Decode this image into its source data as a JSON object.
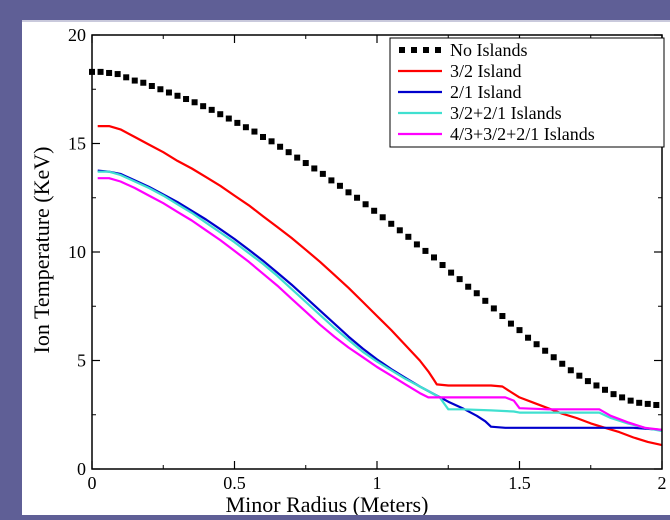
{
  "chart_data": {
    "type": "line",
    "xlabel": "Minor Radius (Meters)",
    "ylabel": "Ion Temperature (KeV)",
    "xlim": [
      0,
      2
    ],
    "ylim": [
      0,
      20
    ],
    "x_ticks": [
      {
        "value": 0,
        "label": "0"
      },
      {
        "value": 0.5,
        "label": "0.5"
      },
      {
        "value": 1,
        "label": "1"
      },
      {
        "value": 1.5,
        "label": "1.5"
      },
      {
        "value": 2,
        "label": "2"
      }
    ],
    "y_ticks": [
      {
        "value": 0,
        "label": "0"
      },
      {
        "value": 5,
        "label": "5"
      },
      {
        "value": 10,
        "label": "10"
      },
      {
        "value": 15,
        "label": "15"
      },
      {
        "value": 20,
        "label": "20"
      }
    ],
    "legend_position": "top-right",
    "series": [
      {
        "name": "No Islands",
        "style": "markers",
        "color": "#000000",
        "points": [
          [
            0.0,
            18.3
          ],
          [
            0.03,
            18.3
          ],
          [
            0.06,
            18.25
          ],
          [
            0.09,
            18.2
          ],
          [
            0.12,
            18.05
          ],
          [
            0.15,
            17.9
          ],
          [
            0.18,
            17.8
          ],
          [
            0.21,
            17.65
          ],
          [
            0.24,
            17.5
          ],
          [
            0.27,
            17.35
          ],
          [
            0.3,
            17.2
          ],
          [
            0.33,
            17.05
          ],
          [
            0.36,
            16.9
          ],
          [
            0.39,
            16.72
          ],
          [
            0.42,
            16.55
          ],
          [
            0.45,
            16.35
          ],
          [
            0.48,
            16.15
          ],
          [
            0.51,
            15.95
          ],
          [
            0.54,
            15.75
          ],
          [
            0.57,
            15.55
          ],
          [
            0.6,
            15.3
          ],
          [
            0.63,
            15.1
          ],
          [
            0.66,
            14.85
          ],
          [
            0.69,
            14.6
          ],
          [
            0.72,
            14.35
          ],
          [
            0.75,
            14.1
          ],
          [
            0.78,
            13.85
          ],
          [
            0.81,
            13.6
          ],
          [
            0.84,
            13.3
          ],
          [
            0.87,
            13.05
          ],
          [
            0.9,
            12.75
          ],
          [
            0.93,
            12.5
          ],
          [
            0.96,
            12.2
          ],
          [
            0.99,
            11.9
          ],
          [
            1.02,
            11.6
          ],
          [
            1.05,
            11.3
          ],
          [
            1.08,
            11.0
          ],
          [
            1.11,
            10.7
          ],
          [
            1.14,
            10.35
          ],
          [
            1.17,
            10.05
          ],
          [
            1.2,
            9.75
          ],
          [
            1.23,
            9.4
          ],
          [
            1.26,
            9.05
          ],
          [
            1.29,
            8.75
          ],
          [
            1.32,
            8.4
          ],
          [
            1.35,
            8.1
          ],
          [
            1.38,
            7.75
          ],
          [
            1.41,
            7.4
          ],
          [
            1.44,
            7.05
          ],
          [
            1.47,
            6.7
          ],
          [
            1.5,
            6.4
          ],
          [
            1.53,
            6.05
          ],
          [
            1.56,
            5.75
          ],
          [
            1.59,
            5.45
          ],
          [
            1.62,
            5.15
          ],
          [
            1.65,
            4.85
          ],
          [
            1.68,
            4.55
          ],
          [
            1.71,
            4.3
          ],
          [
            1.74,
            4.05
          ],
          [
            1.77,
            3.85
          ],
          [
            1.8,
            3.65
          ],
          [
            1.83,
            3.45
          ],
          [
            1.86,
            3.3
          ],
          [
            1.89,
            3.15
          ],
          [
            1.92,
            3.05
          ],
          [
            1.95,
            3.0
          ],
          [
            1.98,
            2.95
          ]
        ]
      },
      {
        "name": "3/2 Island",
        "style": "line",
        "color": "#ff0000",
        "points": [
          [
            0.02,
            15.8
          ],
          [
            0.06,
            15.8
          ],
          [
            0.1,
            15.65
          ],
          [
            0.15,
            15.3
          ],
          [
            0.2,
            14.95
          ],
          [
            0.25,
            14.6
          ],
          [
            0.3,
            14.2
          ],
          [
            0.35,
            13.85
          ],
          [
            0.4,
            13.45
          ],
          [
            0.45,
            13.05
          ],
          [
            0.5,
            12.6
          ],
          [
            0.55,
            12.15
          ],
          [
            0.6,
            11.65
          ],
          [
            0.65,
            11.15
          ],
          [
            0.7,
            10.65
          ],
          [
            0.75,
            10.1
          ],
          [
            0.8,
            9.55
          ],
          [
            0.85,
            8.95
          ],
          [
            0.9,
            8.35
          ],
          [
            0.95,
            7.7
          ],
          [
            1.0,
            7.05
          ],
          [
            1.05,
            6.4
          ],
          [
            1.1,
            5.7
          ],
          [
            1.15,
            5.0
          ],
          [
            1.18,
            4.5
          ],
          [
            1.2,
            4.1
          ],
          [
            1.21,
            3.9
          ],
          [
            1.25,
            3.85
          ],
          [
            1.3,
            3.85
          ],
          [
            1.35,
            3.85
          ],
          [
            1.4,
            3.85
          ],
          [
            1.44,
            3.8
          ],
          [
            1.47,
            3.55
          ],
          [
            1.5,
            3.3
          ],
          [
            1.55,
            3.05
          ],
          [
            1.6,
            2.8
          ],
          [
            1.65,
            2.55
          ],
          [
            1.7,
            2.35
          ],
          [
            1.75,
            2.1
          ],
          [
            1.8,
            1.9
          ],
          [
            1.85,
            1.7
          ],
          [
            1.9,
            1.45
          ],
          [
            1.95,
            1.25
          ],
          [
            2.0,
            1.1
          ]
        ]
      },
      {
        "name": "2/1 Island",
        "style": "line",
        "color": "#0000cc",
        "points": [
          [
            0.02,
            13.75
          ],
          [
            0.06,
            13.7
          ],
          [
            0.1,
            13.6
          ],
          [
            0.15,
            13.3
          ],
          [
            0.2,
            13.0
          ],
          [
            0.25,
            12.65
          ],
          [
            0.3,
            12.3
          ],
          [
            0.35,
            11.9
          ],
          [
            0.4,
            11.5
          ],
          [
            0.45,
            11.05
          ],
          [
            0.5,
            10.6
          ],
          [
            0.55,
            10.1
          ],
          [
            0.6,
            9.6
          ],
          [
            0.65,
            9.05
          ],
          [
            0.7,
            8.5
          ],
          [
            0.75,
            7.9
          ],
          [
            0.8,
            7.3
          ],
          [
            0.85,
            6.7
          ],
          [
            0.9,
            6.1
          ],
          [
            0.95,
            5.55
          ],
          [
            1.0,
            5.05
          ],
          [
            1.05,
            4.6
          ],
          [
            1.1,
            4.2
          ],
          [
            1.15,
            3.8
          ],
          [
            1.2,
            3.45
          ],
          [
            1.25,
            3.1
          ],
          [
            1.3,
            2.8
          ],
          [
            1.35,
            2.45
          ],
          [
            1.38,
            2.2
          ],
          [
            1.4,
            1.95
          ],
          [
            1.45,
            1.9
          ],
          [
            1.5,
            1.9
          ],
          [
            1.6,
            1.9
          ],
          [
            1.7,
            1.9
          ],
          [
            1.8,
            1.9
          ],
          [
            1.9,
            1.9
          ],
          [
            2.0,
            1.8
          ]
        ]
      },
      {
        "name": "3/2+2/1 Islands",
        "style": "line",
        "color": "#40e0d0",
        "points": [
          [
            0.02,
            13.7
          ],
          [
            0.06,
            13.7
          ],
          [
            0.1,
            13.55
          ],
          [
            0.15,
            13.25
          ],
          [
            0.2,
            12.95
          ],
          [
            0.25,
            12.6
          ],
          [
            0.3,
            12.2
          ],
          [
            0.35,
            11.8
          ],
          [
            0.4,
            11.35
          ],
          [
            0.45,
            10.9
          ],
          [
            0.5,
            10.45
          ],
          [
            0.55,
            9.95
          ],
          [
            0.6,
            9.45
          ],
          [
            0.65,
            8.9
          ],
          [
            0.7,
            8.3
          ],
          [
            0.75,
            7.7
          ],
          [
            0.8,
            7.1
          ],
          [
            0.85,
            6.5
          ],
          [
            0.9,
            5.95
          ],
          [
            0.95,
            5.4
          ],
          [
            1.0,
            4.95
          ],
          [
            1.05,
            4.55
          ],
          [
            1.1,
            4.15
          ],
          [
            1.15,
            3.8
          ],
          [
            1.2,
            3.45
          ],
          [
            1.22,
            3.3
          ],
          [
            1.25,
            2.75
          ],
          [
            1.3,
            2.75
          ],
          [
            1.4,
            2.7
          ],
          [
            1.48,
            2.65
          ],
          [
            1.5,
            2.6
          ],
          [
            1.6,
            2.6
          ],
          [
            1.7,
            2.6
          ],
          [
            1.78,
            2.6
          ],
          [
            1.82,
            2.35
          ],
          [
            1.88,
            2.1
          ],
          [
            1.94,
            1.9
          ],
          [
            2.0,
            1.75
          ]
        ]
      },
      {
        "name": "4/3+3/2+2/1 Islands",
        "style": "line",
        "color": "#ff00ff",
        "points": [
          [
            0.02,
            13.4
          ],
          [
            0.06,
            13.4
          ],
          [
            0.1,
            13.25
          ],
          [
            0.15,
            12.95
          ],
          [
            0.2,
            12.6
          ],
          [
            0.25,
            12.25
          ],
          [
            0.3,
            11.85
          ],
          [
            0.35,
            11.45
          ],
          [
            0.4,
            11.0
          ],
          [
            0.45,
            10.55
          ],
          [
            0.5,
            10.05
          ],
          [
            0.55,
            9.55
          ],
          [
            0.6,
            9.0
          ],
          [
            0.65,
            8.45
          ],
          [
            0.7,
            7.85
          ],
          [
            0.75,
            7.25
          ],
          [
            0.8,
            6.65
          ],
          [
            0.85,
            6.1
          ],
          [
            0.9,
            5.6
          ],
          [
            0.95,
            5.15
          ],
          [
            1.0,
            4.7
          ],
          [
            1.05,
            4.3
          ],
          [
            1.1,
            3.9
          ],
          [
            1.15,
            3.5
          ],
          [
            1.18,
            3.3
          ],
          [
            1.2,
            3.3
          ],
          [
            1.3,
            3.3
          ],
          [
            1.4,
            3.3
          ],
          [
            1.45,
            3.3
          ],
          [
            1.48,
            3.15
          ],
          [
            1.5,
            2.8
          ],
          [
            1.6,
            2.75
          ],
          [
            1.7,
            2.75
          ],
          [
            1.78,
            2.75
          ],
          [
            1.82,
            2.45
          ],
          [
            1.88,
            2.15
          ],
          [
            1.94,
            1.9
          ],
          [
            2.0,
            1.8
          ]
        ]
      }
    ]
  }
}
